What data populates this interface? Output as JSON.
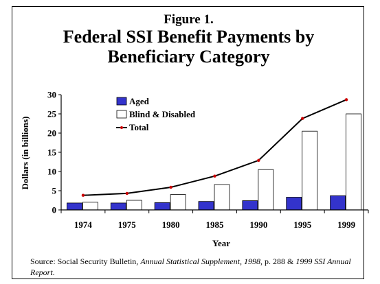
{
  "chart_data": {
    "type": "bar",
    "title_line1": "Figure 1.",
    "title_line2": "Federal SSI Benefit Payments by",
    "title_line3": "Beneficiary Category",
    "xlabel": "Year",
    "ylabel": "Dollars (in billions)",
    "ylim": [
      0,
      30
    ],
    "yticks": [
      0,
      5,
      10,
      15,
      20,
      25,
      30
    ],
    "categories": [
      "1974",
      "1975",
      "1980",
      "1985",
      "1990",
      "1995",
      "1999"
    ],
    "series": [
      {
        "name": "Aged",
        "type": "bar",
        "color": "#3333cc",
        "values": [
          1.8,
          1.8,
          1.9,
          2.2,
          2.4,
          3.3,
          3.7
        ]
      },
      {
        "name": "Blind & Disabled",
        "type": "bar",
        "color": "#ffffff",
        "values": [
          2.0,
          2.5,
          4.0,
          6.6,
          10.5,
          20.5,
          25.0
        ]
      },
      {
        "name": "Total",
        "type": "line",
        "color": "#000000",
        "marker_color": "#cc0000",
        "values": [
          3.8,
          4.3,
          5.9,
          8.8,
          12.9,
          23.8,
          28.7
        ]
      }
    ],
    "legend_position": "top-left",
    "grid": false
  },
  "source": {
    "prefix": "Source: Social Security Bulletin, ",
    "italic1": "Annual Statistical Supplement, 1998",
    "middle": ", p. 288 & ",
    "italic2": "1999 SSI Annual Report",
    "suffix": "."
  }
}
